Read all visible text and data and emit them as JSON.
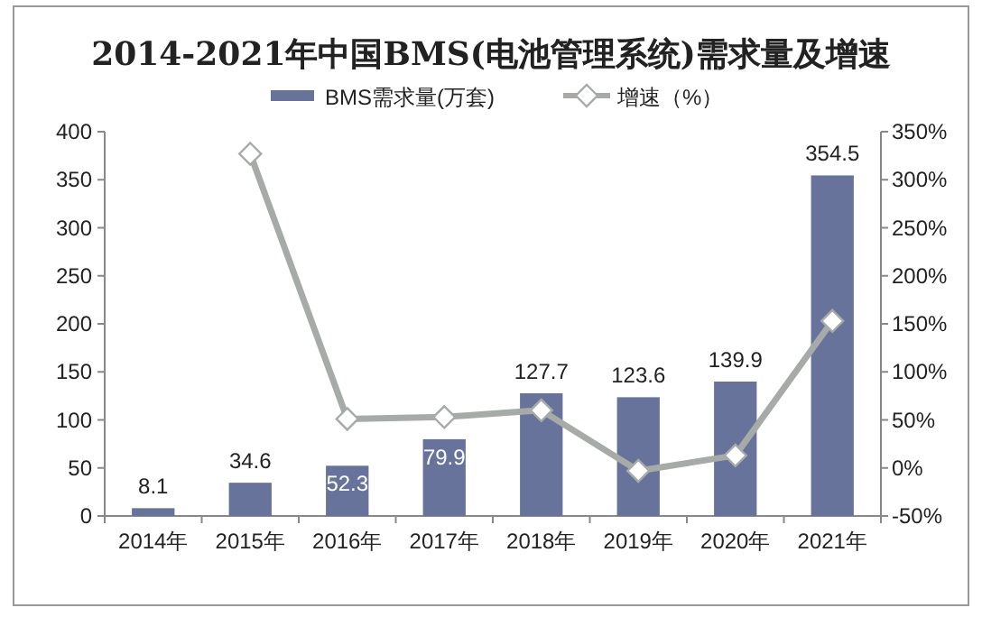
{
  "chart_data": {
    "type": "bar",
    "title": "2014-2021年中国BMS(电池管理系统)需求量及增速",
    "categories": [
      "2014年",
      "2015年",
      "2016年",
      "2017年",
      "2018年",
      "2019年",
      "2020年",
      "2021年"
    ],
    "series": [
      {
        "name": "BMS需求量(万套)",
        "color": "#67739a",
        "values": [
          8.1,
          34.6,
          52.3,
          79.9,
          127.7,
          123.6,
          139.9,
          354.5
        ],
        "value_labels": [
          "8.1",
          "34.6",
          "52.3",
          "79.9",
          "127.7",
          "123.6",
          "139.9",
          "354.5"
        ]
      },
      {
        "name": "增速（%）",
        "type": "line",
        "axis": "y2",
        "color": "#a6aba8",
        "marker": "diamond",
        "values": [
          null,
          327,
          51,
          53,
          60,
          -3,
          13,
          153
        ]
      }
    ],
    "ylim": [
      0,
      400
    ],
    "yticks": [
      0,
      50,
      100,
      150,
      200,
      250,
      300,
      350,
      400
    ],
    "y2lim": [
      -50,
      350
    ],
    "y2ticks": [
      {
        "value": -50,
        "label": "-50%"
      },
      {
        "value": 0,
        "label": "0%"
      },
      {
        "value": 50,
        "label": "50%"
      },
      {
        "value": 100,
        "label": "100%"
      },
      {
        "value": 150,
        "label": "150%"
      },
      {
        "value": 200,
        "label": "200%"
      },
      {
        "value": 250,
        "label": "250%"
      },
      {
        "value": 300,
        "label": "300%"
      },
      {
        "value": 350,
        "label": "350%"
      }
    ],
    "grid": false,
    "legend": "top"
  }
}
